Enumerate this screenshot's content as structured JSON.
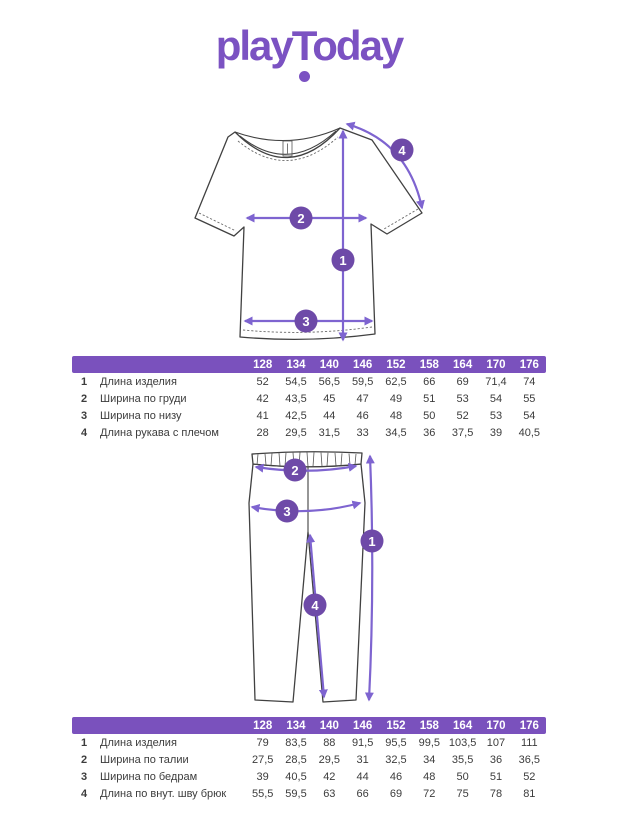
{
  "brand": {
    "logo_text": "playToday"
  },
  "colors": {
    "brand_purple": "#7b52c2",
    "table_header_bg": "#7a51bd",
    "arrow_purple": "#7e64d0",
    "point_circle_purple": "#6e4aa8",
    "drawing_outline": "#414141"
  },
  "diagrams": {
    "shirt": {
      "point_labels": [
        "1",
        "2",
        "3",
        "4"
      ]
    },
    "pants": {
      "point_labels": [
        "1",
        "2",
        "3",
        "4"
      ]
    }
  },
  "size_tables": {
    "sizes": [
      "128",
      "134",
      "140",
      "146",
      "152",
      "158",
      "164",
      "170",
      "176"
    ],
    "shirt": {
      "rows": [
        {
          "num": "1",
          "label": "Длина изделия",
          "values": [
            "52",
            "54,5",
            "56,5",
            "59,5",
            "62,5",
            "66",
            "69",
            "71,4",
            "74"
          ]
        },
        {
          "num": "2",
          "label": "Ширина по груди",
          "values": [
            "42",
            "43,5",
            "45",
            "47",
            "49",
            "51",
            "53",
            "54",
            "55"
          ]
        },
        {
          "num": "3",
          "label": "Ширина по низу",
          "values": [
            "41",
            "42,5",
            "44",
            "46",
            "48",
            "50",
            "52",
            "53",
            "54"
          ]
        },
        {
          "num": "4",
          "label": "Длина рукава с плечом",
          "values": [
            "28",
            "29,5",
            "31,5",
            "33",
            "34,5",
            "36",
            "37,5",
            "39",
            "40,5"
          ]
        }
      ]
    },
    "pants": {
      "rows": [
        {
          "num": "1",
          "label": "Длина изделия",
          "values": [
            "79",
            "83,5",
            "88",
            "91,5",
            "95,5",
            "99,5",
            "103,5",
            "107",
            "111"
          ]
        },
        {
          "num": "2",
          "label": "Ширина по талии",
          "values": [
            "27,5",
            "28,5",
            "29,5",
            "31",
            "32,5",
            "34",
            "35,5",
            "36",
            "36,5"
          ]
        },
        {
          "num": "3",
          "label": "Ширина по бедрам",
          "values": [
            "39",
            "40,5",
            "42",
            "44",
            "46",
            "48",
            "50",
            "51",
            "52"
          ]
        },
        {
          "num": "4",
          "label": "Длина по внут. шву брюк",
          "values": [
            "55,5",
            "59,5",
            "63",
            "66",
            "69",
            "72",
            "75",
            "78",
            "81"
          ]
        }
      ]
    }
  }
}
